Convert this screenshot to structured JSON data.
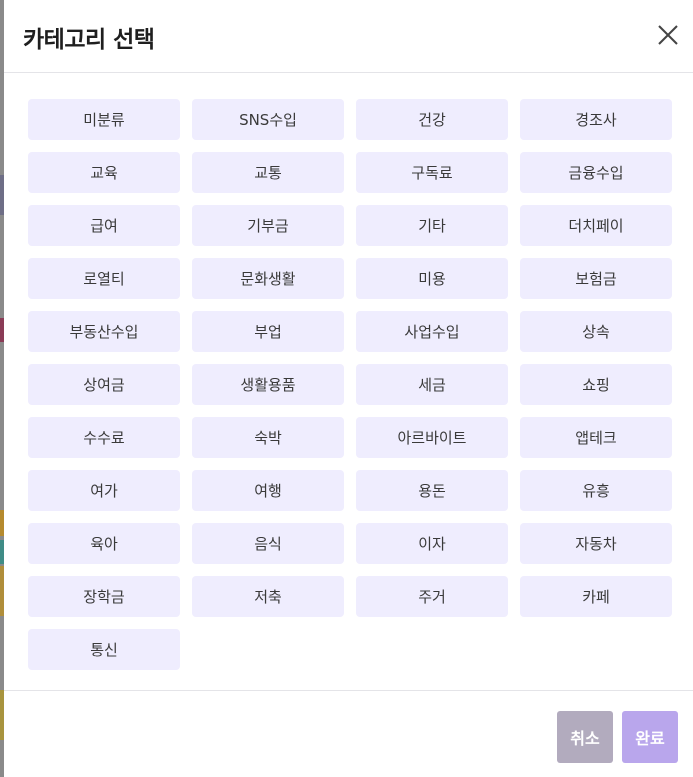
{
  "modal": {
    "title": "카테고리 선택",
    "close_icon": "close-icon"
  },
  "categories": [
    "미분류",
    "SNS수입",
    "건강",
    "경조사",
    "교육",
    "교통",
    "구독료",
    "금융수입",
    "급여",
    "기부금",
    "기타",
    "더치페이",
    "로열티",
    "문화생활",
    "미용",
    "보험금",
    "부동산수입",
    "부업",
    "사업수입",
    "상속",
    "상여금",
    "생활용품",
    "세금",
    "쇼핑",
    "수수료",
    "숙박",
    "아르바이트",
    "앱테크",
    "여가",
    "여행",
    "용돈",
    "유흥",
    "육아",
    "음식",
    "이자",
    "자동차",
    "장학금",
    "저축",
    "주거",
    "카페",
    "통신"
  ],
  "footer": {
    "cancel_label": "취소",
    "done_label": "완료"
  },
  "colors": {
    "chip_bg": "#efedfe",
    "cancel_bg": "#b2abbe",
    "done_bg": "#b9a6ec",
    "backdrop": "#8a8a8a"
  }
}
